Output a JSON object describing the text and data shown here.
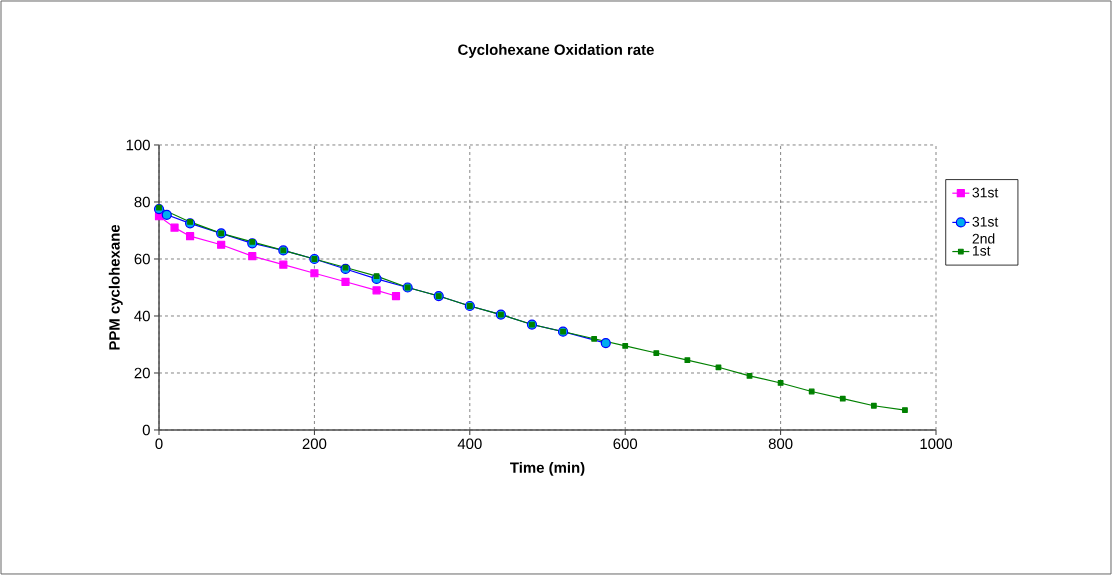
{
  "chart_data": {
    "type": "line",
    "title": "Cyclohexane Oxidation rate",
    "xlabel": "Time (min)",
    "ylabel": "PPM cyclohexane",
    "xlim": [
      0,
      1000
    ],
    "xticks": [
      0,
      200,
      400,
      600,
      800,
      1000
    ],
    "ylim": [
      0,
      100
    ],
    "yticks": [
      0,
      20,
      40,
      60,
      80,
      100
    ],
    "grid": true,
    "legend": "right",
    "series": [
      {
        "name": "31st",
        "color": "#ff00ff",
        "marker": "square",
        "x": [
          0,
          20,
          40,
          80,
          120,
          160,
          200,
          240,
          280,
          305
        ],
        "values": [
          75,
          71,
          68,
          65,
          61,
          58,
          55,
          52,
          49,
          47
        ]
      },
      {
        "name": "31st 2nd",
        "color": "#0000ff",
        "marker": "circle",
        "x": [
          0,
          10,
          40,
          80,
          120,
          160,
          200,
          240,
          280,
          320,
          360,
          400,
          440,
          480,
          520,
          575
        ],
        "values": [
          77.5,
          75.5,
          72.5,
          69,
          65.5,
          63,
          60,
          56.5,
          53,
          50,
          47,
          43.5,
          40.5,
          37,
          34.5,
          30.5
        ]
      },
      {
        "name": "1st",
        "color": "#008000",
        "marker": "square",
        "x": [
          0,
          40,
          80,
          120,
          160,
          200,
          240,
          280,
          320,
          360,
          400,
          440,
          480,
          520,
          560,
          600,
          640,
          680,
          720,
          760,
          800,
          840,
          880,
          920,
          960
        ],
        "values": [
          78,
          73,
          69,
          66,
          63,
          60,
          57,
          54,
          50,
          47,
          43.5,
          40.5,
          37,
          34.5,
          32,
          29.5,
          27,
          24.5,
          22,
          19,
          16.5,
          13.5,
          11,
          8.5,
          7
        ]
      }
    ]
  }
}
